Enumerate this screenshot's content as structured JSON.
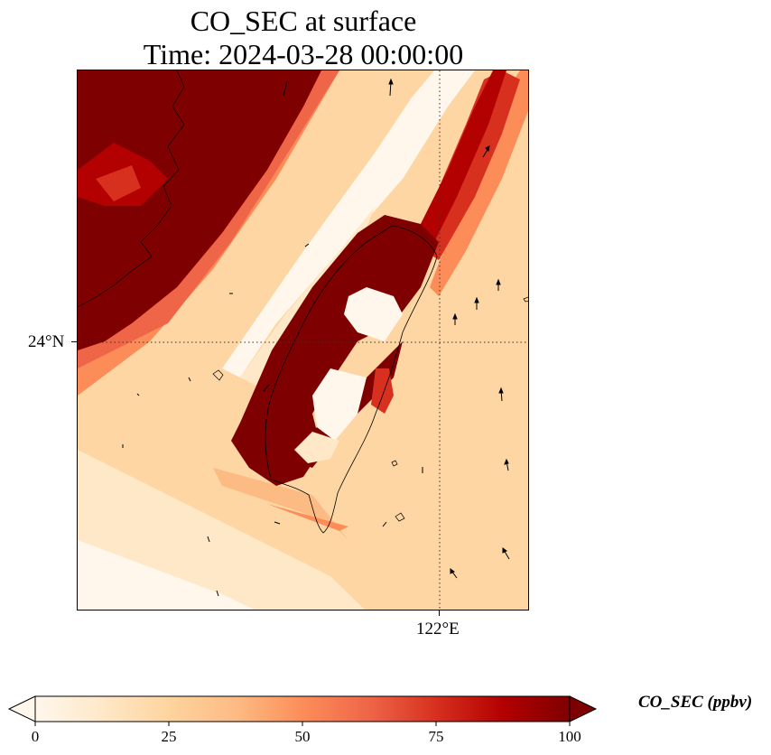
{
  "title": {
    "line1": "CO_SEC at surface",
    "line2": "Time: 2024-03-28 00:00:00"
  },
  "map": {
    "variable": "CO_SEC",
    "level": "surface",
    "time": "2024-03-28 00:00:00",
    "colormap": "OrRd",
    "gridlines": "dotted",
    "lat_ticks": [
      "24°N"
    ],
    "lon_ticks": [
      "122°E"
    ],
    "colors": {
      "low": "#fff7ec",
      "mid": "#fdd49e",
      "high": "#ef6548",
      "max": "#7f0000",
      "coastline": "#000000"
    }
  },
  "colorbar": {
    "label": "CO_SEC (ppbv)",
    "min": 0,
    "max": 100,
    "ticks": [
      "0",
      "25",
      "50",
      "75",
      "100"
    ],
    "extend": "both"
  }
}
